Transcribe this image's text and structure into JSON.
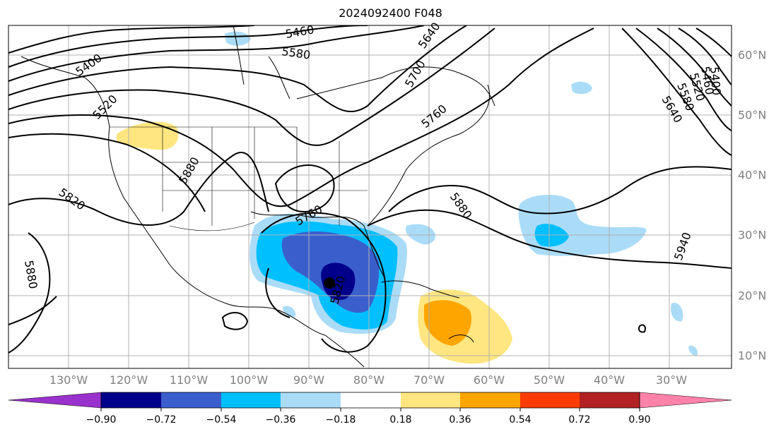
{
  "title": "2024092400 F048",
  "lon_labels": [
    "130°W",
    "120°W",
    "110°W",
    "100°W",
    "90°W",
    "80°W",
    "70°W",
    "60°W",
    "50°W",
    "40°W",
    "30°W"
  ],
  "lat_labels": [
    "60°N",
    "50°N",
    "40°N",
    "30°N",
    "20°N",
    "10°N"
  ],
  "contour_labels": [
    "5400",
    "5460",
    "5580",
    "5520",
    "5700",
    "5640",
    "5760",
    "5880",
    "5820",
    "5880",
    "5760",
    "5820",
    "5880",
    "5940",
    "5640",
    "5580",
    "5520",
    "5460",
    "5400"
  ],
  "colorbar": {
    "ticks": [
      "−0.90",
      "−0.72",
      "−0.54",
      "−0.36",
      "−0.18",
      "0.18",
      "0.36",
      "0.54",
      "0.72",
      "0.90"
    ],
    "colors": [
      "#9932cc",
      "#00008b",
      "#3a5fcd",
      "#00bfff",
      "#aadcf8",
      "#ffffff",
      "#ffe680",
      "#ffa500",
      "#ff3c00",
      "#b22222",
      "#ff82ab"
    ]
  },
  "colors": {
    "strong_neg": "#00008b",
    "neg": "#3a5fcd",
    "mid_neg": "#00bfff",
    "weak_neg": "#aadcf8",
    "weak_pos": "#ffe680",
    "pos": "#ffa500"
  }
}
